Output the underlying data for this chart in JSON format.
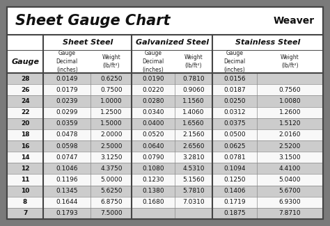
{
  "title": "Sheet Gauge Chart",
  "bg_outer": "#7a7a7a",
  "bg_inner": "#ffffff",
  "bg_row_dark": "#cccccc",
  "bg_row_light": "#f0f0f0",
  "section_headers": [
    "Sheet Steel",
    "Galvanized Steel",
    "Stainless Steel"
  ],
  "gauges": [
    28,
    26,
    24,
    22,
    20,
    18,
    16,
    14,
    12,
    11,
    10,
    8,
    7
  ],
  "sheet_steel": [
    [
      "0.0149",
      "0.6250"
    ],
    [
      "0.0179",
      "0.7500"
    ],
    [
      "0.0239",
      "1.0000"
    ],
    [
      "0.0299",
      "1.2500"
    ],
    [
      "0.0359",
      "1.5000"
    ],
    [
      "0.0478",
      "2.0000"
    ],
    [
      "0.0598",
      "2.5000"
    ],
    [
      "0.0747",
      "3.1250"
    ],
    [
      "0.1046",
      "4.3750"
    ],
    [
      "0.1196",
      "5.0000"
    ],
    [
      "0.1345",
      "5.6250"
    ],
    [
      "0.1644",
      "6.8750"
    ],
    [
      "0.1793",
      "7.5000"
    ]
  ],
  "galvanized_steel": [
    [
      "0.0190",
      "0.7810"
    ],
    [
      "0.0220",
      "0.9060"
    ],
    [
      "0.0280",
      "1.1560"
    ],
    [
      "0.0340",
      "1.4060"
    ],
    [
      "0.0400",
      "1.6560"
    ],
    [
      "0.0520",
      "2.1560"
    ],
    [
      "0.0640",
      "2.6560"
    ],
    [
      "0.0790",
      "3.2810"
    ],
    [
      "0.1080",
      "4.5310"
    ],
    [
      "0.1230",
      "5.1560"
    ],
    [
      "0.1380",
      "5.7810"
    ],
    [
      "0.1680",
      "7.0310"
    ],
    [
      "",
      ""
    ]
  ],
  "stainless_steel": [
    [
      "0.0156",
      ""
    ],
    [
      "0.0187",
      "0.7560"
    ],
    [
      "0.0250",
      "1.0080"
    ],
    [
      "0.0312",
      "1.2600"
    ],
    [
      "0.0375",
      "1.5120"
    ],
    [
      "0.0500",
      "2.0160"
    ],
    [
      "0.0625",
      "2.5200"
    ],
    [
      "0.0781",
      "3.1500"
    ],
    [
      "0.1094",
      "4.4100"
    ],
    [
      "0.1250",
      "5.0400"
    ],
    [
      "0.1406",
      "5.6700"
    ],
    [
      "0.1719",
      "6.9300"
    ],
    [
      "0.1875",
      "7.8710"
    ]
  ]
}
